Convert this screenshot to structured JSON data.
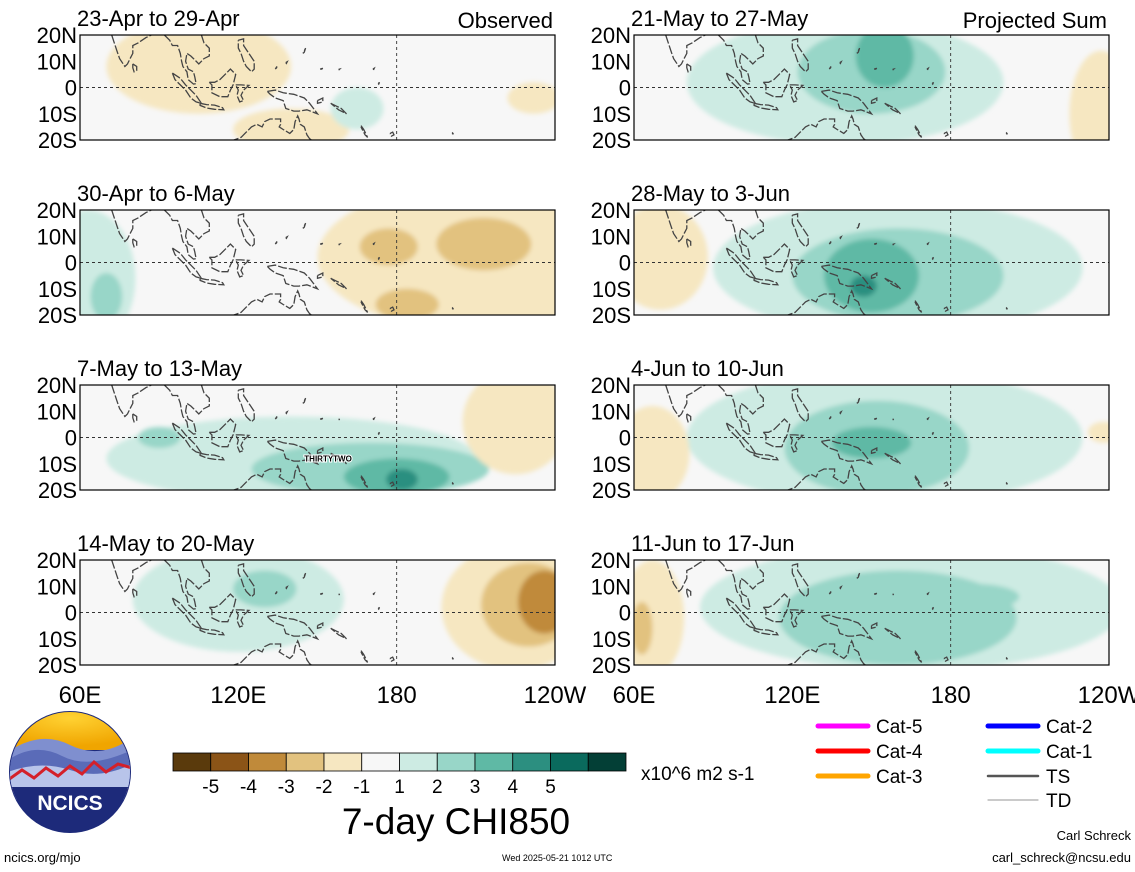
{
  "colors": {
    "scale": [
      "#5a3a0c",
      "#8b5417",
      "#c08a3a",
      "#e2c27f",
      "#f6e7c1",
      "#f7f7f7",
      "#cdebe3",
      "#98d6c8",
      "#5fb9a5",
      "#2c8f80",
      "#0a6a5d",
      "#033f36"
    ],
    "coast": "#444444",
    "dashed": "#333333"
  },
  "chart_data": {
    "type": "heatmap",
    "variable": "7-day CHI850",
    "units": "x10^6 m2 s-1",
    "colorbar": {
      "ticks": [
        "-5",
        "-4",
        "-3",
        "-2",
        "-1",
        "1",
        "2",
        "3",
        "4",
        "5"
      ],
      "bounds": [
        -6,
        -5,
        -4,
        -3,
        -2,
        -1,
        1,
        2,
        3,
        4,
        5,
        6
      ]
    },
    "lon_ticks": [
      "60E",
      "120E",
      "180",
      "120W"
    ],
    "lon_range": [
      60,
      240
    ],
    "lat_ticks": [
      "20N",
      "10N",
      "0",
      "10S",
      "20S"
    ],
    "lat_range": [
      -20,
      20
    ],
    "panels": [
      {
        "id": "obs1",
        "title": "23-Apr to 29-Apr",
        "tag": "Observed",
        "blobs": [
          {
            "lon": 105,
            "lat": 8,
            "rlon": 35,
            "rlat": 18,
            "v": -1.5
          },
          {
            "lon": 140,
            "lat": -16,
            "rlon": 22,
            "rlat": 8,
            "v": -1.5
          },
          {
            "lon": 232,
            "lat": -4,
            "rlon": 10,
            "rlat": 6,
            "v": -1.5
          },
          {
            "lon": 165,
            "lat": -8,
            "rlon": 10,
            "rlat": 8,
            "v": 1.5
          }
        ]
      },
      {
        "id": "obs2",
        "title": "30-Apr to 6-May",
        "tag": "",
        "blobs": [
          {
            "lon": 63,
            "lat": -6,
            "rlon": 18,
            "rlat": 26,
            "v": 1.5
          },
          {
            "lon": 70,
            "lat": -13,
            "rlon": 6,
            "rlat": 9,
            "v": 2.5
          },
          {
            "lon": 210,
            "lat": 2,
            "rlon": 60,
            "rlat": 28,
            "v": -1.5
          },
          {
            "lon": 213,
            "lat": 7,
            "rlon": 18,
            "rlat": 10,
            "v": -2.5
          },
          {
            "lon": 177,
            "lat": 6,
            "rlon": 11,
            "rlat": 7,
            "v": -2.5
          },
          {
            "lon": 184,
            "lat": -16,
            "rlon": 12,
            "rlat": 6,
            "v": -2.5
          }
        ]
      },
      {
        "id": "obs3",
        "title": "7-May to 13-May",
        "tag": "",
        "blobs": [
          {
            "lon": 140,
            "lat": -8,
            "rlon": 70,
            "rlat": 16,
            "v": 1.5
          },
          {
            "lon": 170,
            "lat": -12,
            "rlon": 45,
            "rlat": 10,
            "v": 2.5
          },
          {
            "lon": 180,
            "lat": -15,
            "rlon": 20,
            "rlat": 7,
            "v": 3.5
          },
          {
            "lon": 182,
            "lat": -16,
            "rlon": 6,
            "rlat": 4,
            "v": 4.5
          },
          {
            "lon": 225,
            "lat": 6,
            "rlon": 20,
            "rlat": 20,
            "v": -1.5
          },
          {
            "lon": 90,
            "lat": 0,
            "rlon": 8,
            "rlat": 4,
            "v": 2.5
          }
        ]
      },
      {
        "id": "obs4",
        "title": "14-May to 20-May",
        "tag": "",
        "blobs": [
          {
            "lon": 120,
            "lat": 5,
            "rlon": 40,
            "rlat": 20,
            "v": 1.5
          },
          {
            "lon": 130,
            "lat": 9,
            "rlon": 12,
            "rlat": 7,
            "v": 2.5
          },
          {
            "lon": 225,
            "lat": 2,
            "rlon": 28,
            "rlat": 24,
            "v": -1.5
          },
          {
            "lon": 230,
            "lat": 3,
            "rlon": 18,
            "rlat": 16,
            "v": -2.5
          },
          {
            "lon": 236,
            "lat": 4,
            "rlon": 10,
            "rlat": 12,
            "v": -3.5
          }
        ]
      },
      {
        "id": "prj1",
        "title": "21-May to 27-May",
        "tag": "Projected Sum",
        "blobs": [
          {
            "lon": 140,
            "lat": 2,
            "rlon": 60,
            "rlat": 24,
            "v": 1.5
          },
          {
            "lon": 150,
            "lat": 6,
            "rlon": 28,
            "rlat": 16,
            "v": 2.5
          },
          {
            "lon": 155,
            "lat": 12,
            "rlon": 11,
            "rlat": 12,
            "v": 3.5
          },
          {
            "lon": 237,
            "lat": -10,
            "rlon": 12,
            "rlat": 24,
            "v": -1.5
          }
        ]
      },
      {
        "id": "prj2",
        "title": "28-May to 3-Jun",
        "tag": "",
        "blobs": [
          {
            "lon": 160,
            "lat": -2,
            "rlon": 70,
            "rlat": 26,
            "v": 1.5
          },
          {
            "lon": 160,
            "lat": -5,
            "rlon": 40,
            "rlat": 18,
            "v": 2.5
          },
          {
            "lon": 150,
            "lat": -5,
            "rlon": 18,
            "rlat": 14,
            "v": 3.5
          },
          {
            "lon": 147,
            "lat": -9,
            "rlon": 5,
            "rlat": 4,
            "v": 4.5
          },
          {
            "lon": 70,
            "lat": 2,
            "rlon": 18,
            "rlat": 20,
            "v": -1.5
          }
        ]
      },
      {
        "id": "prj3",
        "title": "4-Jun to 10-Jun",
        "tag": "",
        "blobs": [
          {
            "lon": 155,
            "lat": 0,
            "rlon": 75,
            "rlat": 26,
            "v": 1.5
          },
          {
            "lon": 152,
            "lat": -4,
            "rlon": 35,
            "rlat": 18,
            "v": 2.5
          },
          {
            "lon": 150,
            "lat": -2,
            "rlon": 15,
            "rlat": 6,
            "v": 3.5
          },
          {
            "lon": 67,
            "lat": -6,
            "rlon": 14,
            "rlat": 18,
            "v": -1.5
          },
          {
            "lon": 238,
            "lat": 2,
            "rlon": 6,
            "rlat": 4,
            "v": -1.5
          }
        ]
      },
      {
        "id": "prj4",
        "title": "11-Jun to 17-Jun",
        "tag": "",
        "blobs": [
          {
            "lon": 165,
            "lat": 2,
            "rlon": 80,
            "rlat": 24,
            "v": 1.5
          },
          {
            "lon": 160,
            "lat": -2,
            "rlon": 45,
            "rlat": 18,
            "v": 2.5
          },
          {
            "lon": 188,
            "lat": 6,
            "rlon": 18,
            "rlat": 5,
            "v": 2.5
          },
          {
            "lon": 67,
            "lat": -2,
            "rlon": 12,
            "rlat": 22,
            "v": -1.5
          },
          {
            "lon": 63,
            "lat": -6,
            "rlon": 4,
            "rlat": 10,
            "v": -2.5
          }
        ]
      }
    ],
    "storm_labels": [
      {
        "panel": "obs3",
        "text": "THIRTYTWO",
        "lon": 154,
        "lat": -8
      }
    ],
    "track_legend": [
      {
        "label": "Cat-5",
        "color": "#ff00ff"
      },
      {
        "label": "Cat-4",
        "color": "#ff0000"
      },
      {
        "label": "Cat-3",
        "color": "#ffa500"
      },
      {
        "label": "Cat-2",
        "color": "#0000ff"
      },
      {
        "label": "Cat-1",
        "color": "#00ffff"
      },
      {
        "label": "TS",
        "color": "#555555"
      },
      {
        "label": "TD",
        "color": "#aaaaaa"
      }
    ]
  },
  "logo": {
    "text": "NCICS"
  },
  "footer": {
    "url": "ncics.org/mjo",
    "timestamp": "Wed 2025-05-21 1012 UTC",
    "author": "Carl Schreck",
    "email": "carl_schreck@ncsu.edu"
  }
}
